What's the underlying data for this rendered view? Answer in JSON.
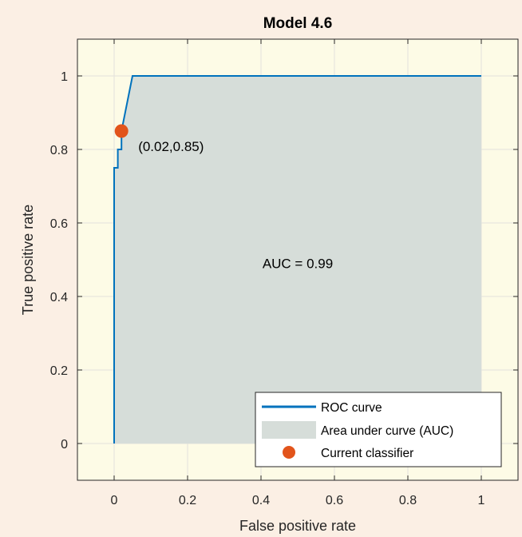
{
  "chart_data": {
    "type": "line",
    "title": "Model 4.6",
    "xlabel": "False positive rate",
    "ylabel": "True positive rate",
    "xlim": [
      -0.1,
      1.1
    ],
    "ylim": [
      -0.1,
      1.1
    ],
    "xticks": [
      0,
      0.2,
      0.4,
      0.6,
      0.8,
      1
    ],
    "xtick_labels": [
      "0",
      "0.2",
      "0.4",
      "0.6",
      "0.8",
      "1"
    ],
    "yticks": [
      0,
      0.2,
      0.4,
      0.6,
      0.8,
      1
    ],
    "ytick_labels": [
      "0",
      "0.2",
      "0.4",
      "0.6",
      "0.8",
      "1"
    ],
    "grid": true,
    "roc_curve": {
      "name": "ROC curve",
      "color": "#0072BD",
      "x": [
        0,
        0,
        0.01,
        0.01,
        0.02,
        0.02,
        0.03,
        0.03,
        0.04,
        0.04,
        0.05,
        1
      ],
      "y": [
        0,
        0.75,
        0.75,
        0.8,
        0.8,
        0.85,
        0.9,
        0.9,
        0.95,
        0.95,
        1,
        1
      ]
    },
    "auc_area": {
      "name": "Area under curve (AUC)",
      "color": "#d6ddd9"
    },
    "current_classifier": {
      "name": "Current classifier",
      "x": 0.02,
      "y": 0.85,
      "label": "(0.02,0.85)",
      "color": "#e2541b"
    },
    "auc_annotation": {
      "text": "AUC = 0.99",
      "x": 0.5,
      "y": 0.49
    },
    "legend_position": "bottom-right",
    "colors": {
      "figure_background": "#fbefe4",
      "axes_background": "#fdfbe6",
      "grid": "#e2e2dc"
    }
  }
}
